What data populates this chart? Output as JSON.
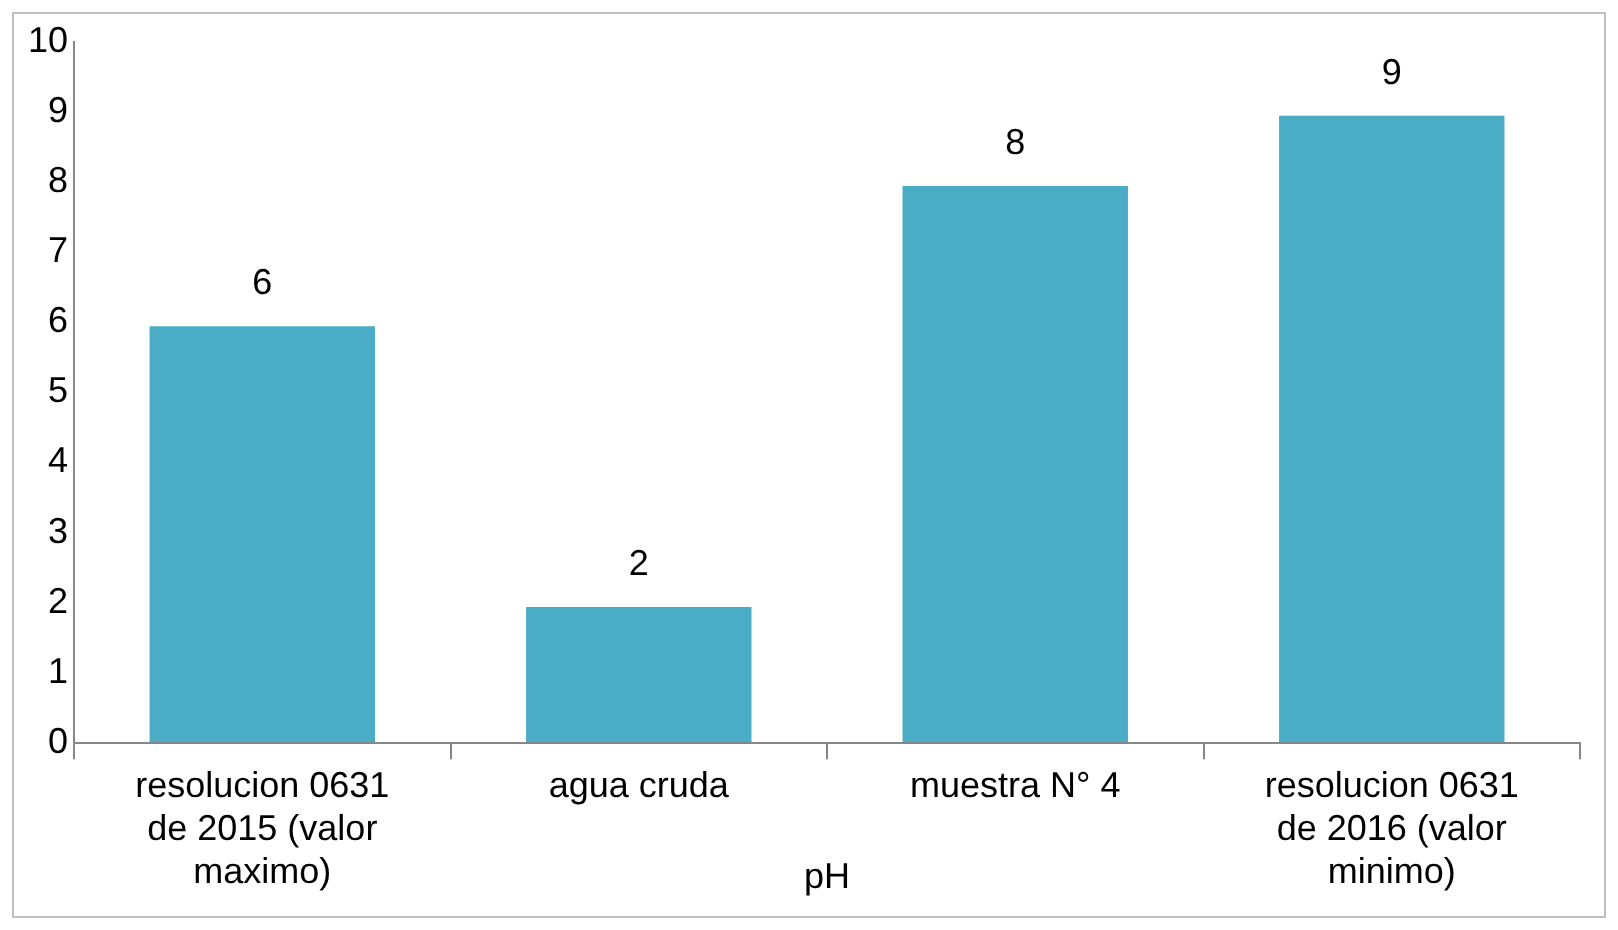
{
  "chart_data": {
    "type": "bar",
    "xlabel": "pH",
    "categories": [
      "resolucion 0631 de 2015 (valor maximo)",
      "agua cruda",
      "muestra N° 4",
      "resolucion 0631 de 2016 (valor minimo)"
    ],
    "values": [
      6,
      2,
      8,
      9
    ],
    "color": "#4bacc6",
    "ylim": [
      0,
      10
    ],
    "yticks": [
      0,
      1,
      2,
      3,
      4,
      5,
      6,
      7,
      8,
      9,
      10
    ],
    "grid": false,
    "legend": false,
    "data_labels": true
  }
}
